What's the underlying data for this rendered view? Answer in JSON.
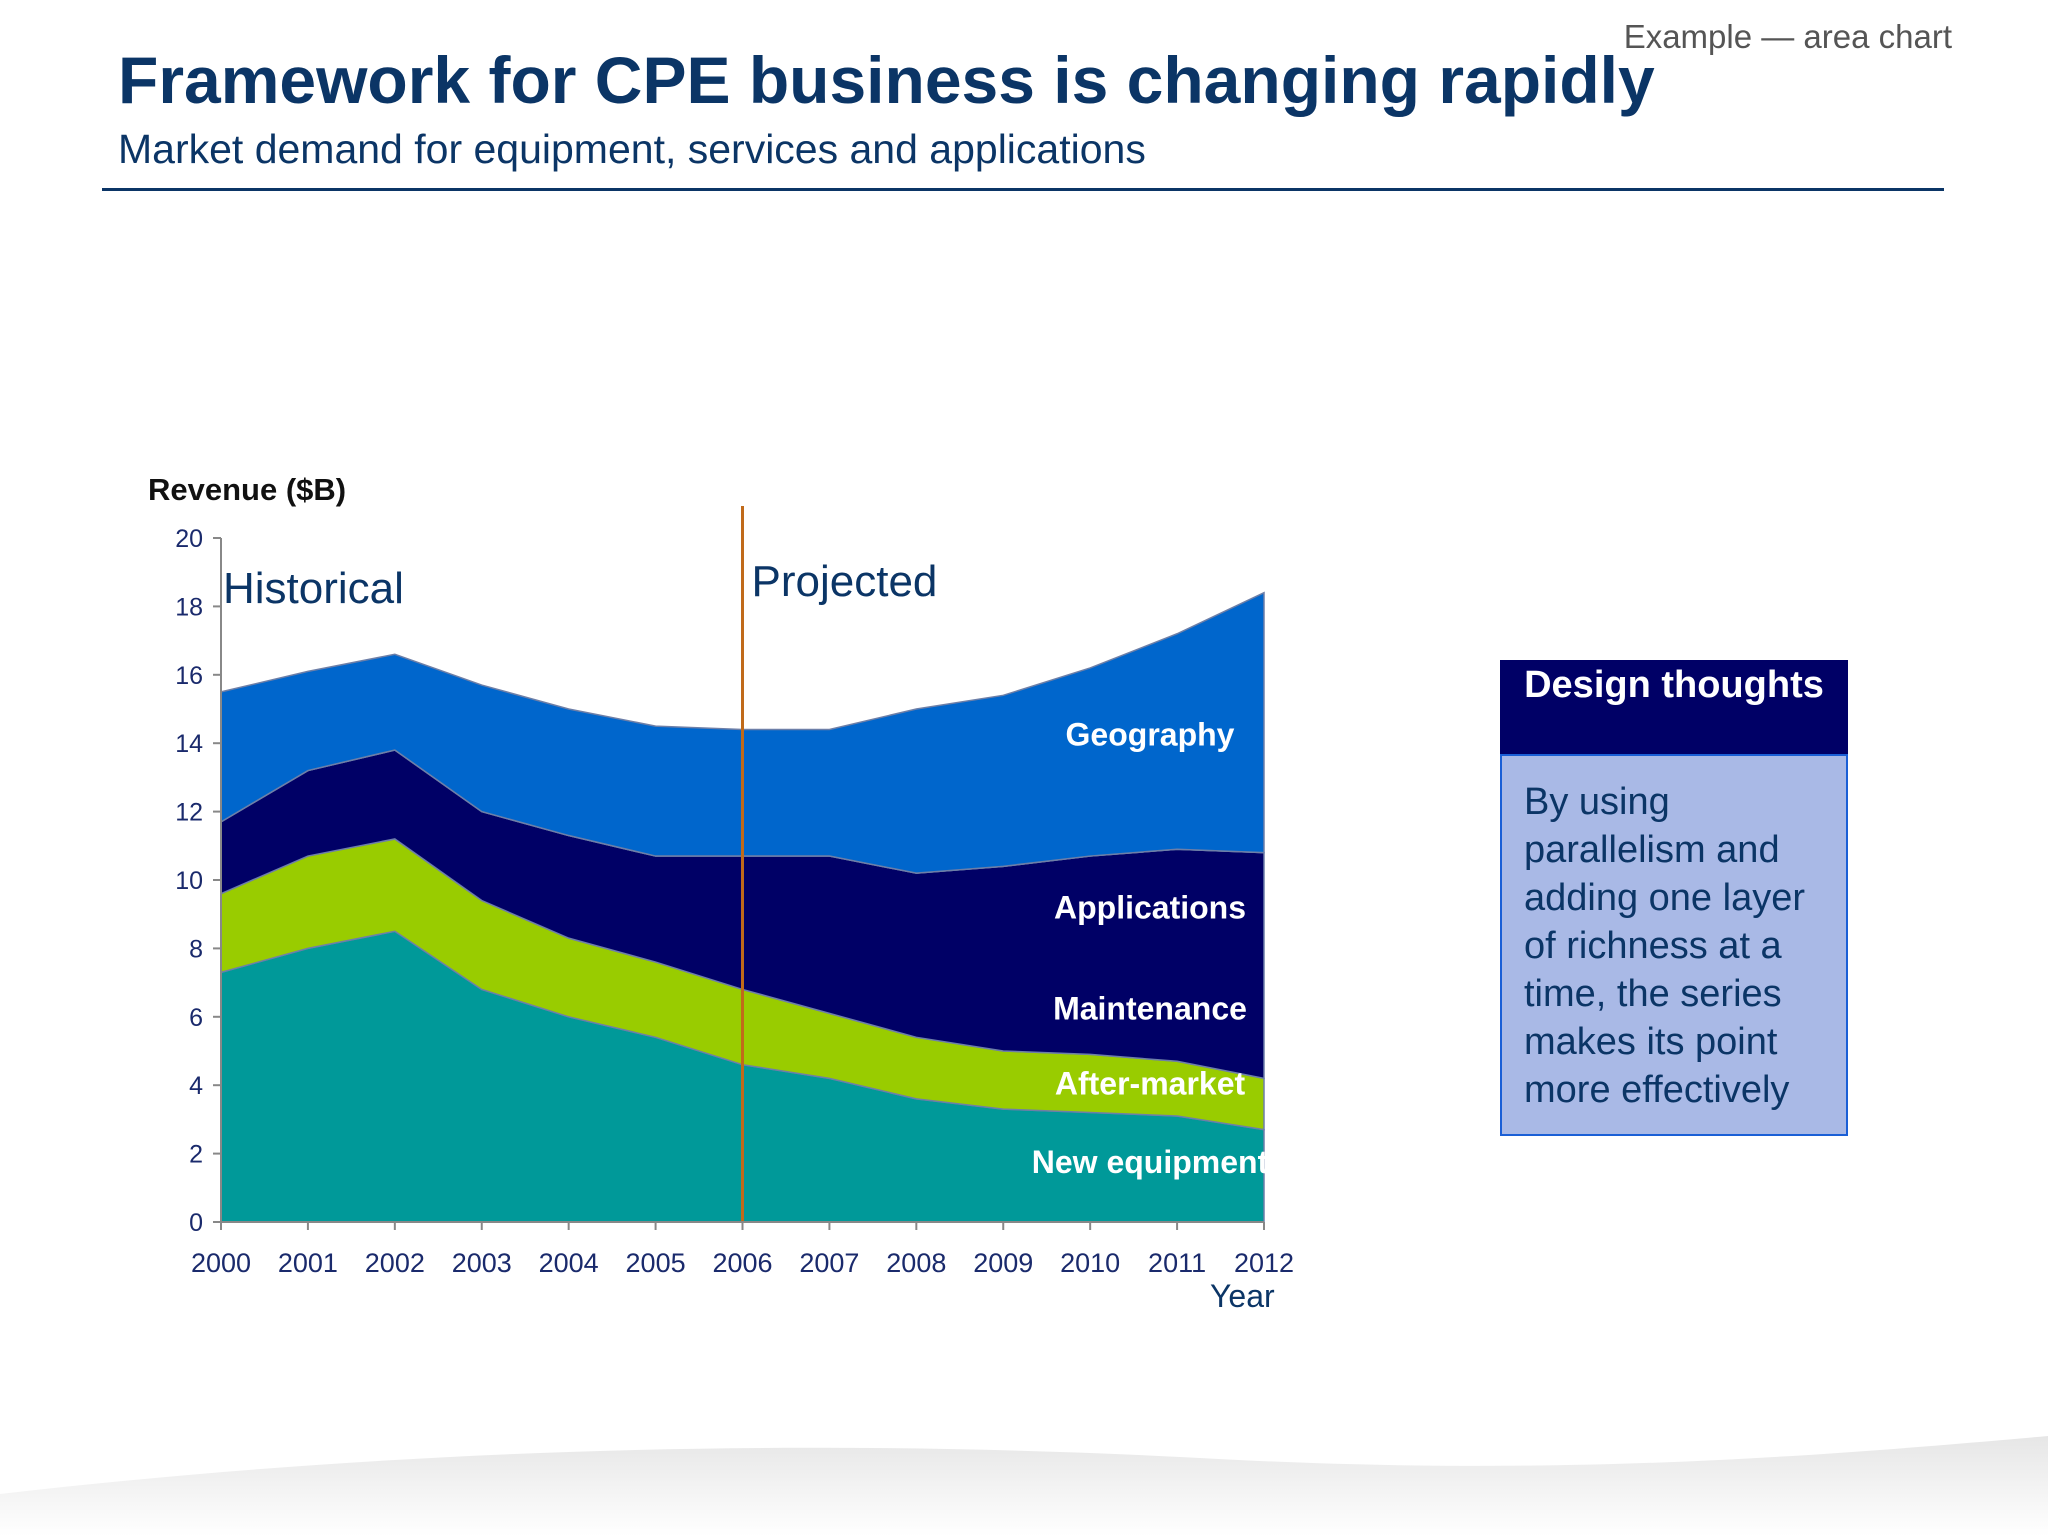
{
  "header": {
    "tag": "Example — area chart",
    "title": "Framework for CPE business is changing rapidly",
    "subtitle": "Market demand for equipment, services and applications"
  },
  "design_box": {
    "heading": "Design thoughts",
    "body": "By using parallelism and adding one layer of richness at a time, the series makes its point more effectively"
  },
  "colors": {
    "title": "#0b3566",
    "divider": "#c06a1a",
    "box_heading": "#000066",
    "box_body": "#a9b9e6"
  },
  "chart_data": {
    "type": "area",
    "stacked": true,
    "ylabel": "Revenue ($B)",
    "xlabel": "Year",
    "ylim": [
      0,
      20
    ],
    "yticks": [
      0,
      2,
      4,
      6,
      8,
      10,
      12,
      14,
      16,
      18,
      20
    ],
    "x": [
      2000,
      2001,
      2002,
      2003,
      2004,
      2005,
      2006,
      2007,
      2008,
      2009,
      2010,
      2011,
      2012
    ],
    "divider_year": 2006,
    "period_labels": {
      "historical": "Historical",
      "projected": "Projected"
    },
    "series": [
      {
        "name": "New equipment",
        "color": "#009999",
        "values": [
          7.3,
          8.0,
          8.5,
          6.8,
          6.0,
          5.4,
          4.6,
          4.2,
          3.6,
          3.3,
          3.2,
          3.1,
          2.7
        ]
      },
      {
        "name": "After-market",
        "color": "#99cc00",
        "values": [
          2.3,
          2.7,
          2.7,
          2.6,
          2.3,
          2.2,
          2.2,
          1.9,
          1.8,
          1.7,
          1.7,
          1.6,
          1.5
        ]
      },
      {
        "name": "Maintenance",
        "color": "#000066",
        "values": [
          2.1,
          2.5,
          2.6,
          2.6,
          3.0,
          3.1,
          3.9,
          4.6,
          4.8,
          5.4,
          5.8,
          6.2,
          6.6
        ]
      },
      {
        "name": "Applications",
        "color": "#000066",
        "values": [
          0,
          0,
          0,
          0,
          0,
          0,
          0,
          0,
          0,
          0,
          0,
          0,
          0
        ]
      },
      {
        "name": "Geography",
        "color": "#0066cc",
        "values": [
          3.8,
          2.9,
          2.8,
          3.7,
          3.7,
          3.8,
          3.7,
          3.7,
          4.8,
          5.0,
          5.5,
          6.3,
          7.6
        ]
      }
    ]
  }
}
